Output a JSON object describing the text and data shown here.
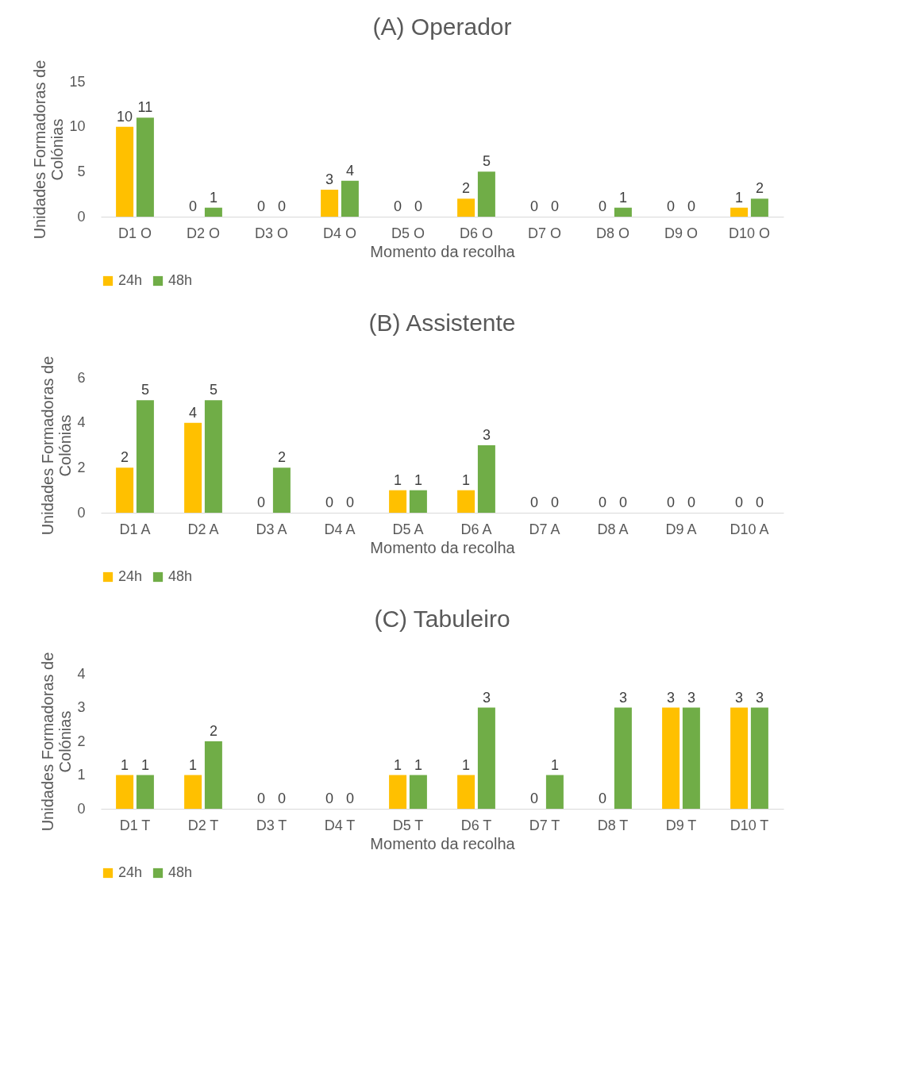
{
  "chart_data": [
    {
      "type": "bar",
      "title": "(A) Operador",
      "xlabel": "Momento da recolha",
      "ylabel": "Unidades Formadoras de Colónias",
      "categories": [
        "D1 O",
        "D2 O",
        "D3 O",
        "D4 O",
        "D5 O",
        "D6 O",
        "D7 O",
        "D8 O",
        "D9 O",
        "D10 O"
      ],
      "series": [
        {
          "name": "24h",
          "color": "#ffc000",
          "values": [
            10,
            0,
            0,
            3,
            0,
            2,
            0,
            0,
            0,
            1
          ]
        },
        {
          "name": "48h",
          "color": "#70ad47",
          "values": [
            11,
            1,
            0,
            4,
            0,
            5,
            0,
            1,
            0,
            2
          ]
        }
      ],
      "ylim": [
        0,
        15
      ],
      "yticks": [
        0,
        5,
        10,
        15
      ],
      "grid": false,
      "legend": "bottom",
      "data_labels": true
    },
    {
      "type": "bar",
      "title": "(B) Assistente",
      "xlabel": "Momento da recolha",
      "ylabel": "Unidades Formadoras de Colónias",
      "categories": [
        "D1 A",
        "D2 A",
        "D3 A",
        "D4 A",
        "D5 A",
        "D6 A",
        "D7 A",
        "D8 A",
        "D9 A",
        "D10 A"
      ],
      "series": [
        {
          "name": "24h",
          "color": "#ffc000",
          "values": [
            2,
            4,
            0,
            0,
            1,
            1,
            0,
            0,
            0,
            0
          ]
        },
        {
          "name": "48h",
          "color": "#70ad47",
          "values": [
            5,
            5,
            2,
            0,
            1,
            3,
            0,
            0,
            0,
            0
          ]
        }
      ],
      "ylim": [
        0,
        6
      ],
      "yticks": [
        0,
        2,
        4,
        6
      ],
      "grid": false,
      "legend": "bottom",
      "data_labels": true
    },
    {
      "type": "bar",
      "title": "(C) Tabuleiro",
      "xlabel": "Momento da recolha",
      "ylabel": "Unidades Formadoras de Colónias",
      "categories": [
        "D1 T",
        "D2 T",
        "D3 T",
        "D4 T",
        "D5 T",
        "D6 T",
        "D7 T",
        "D8 T",
        "D9 T",
        "D10 T"
      ],
      "series": [
        {
          "name": "24h",
          "color": "#ffc000",
          "values": [
            1,
            1,
            0,
            0,
            1,
            1,
            0,
            0,
            3,
            3
          ]
        },
        {
          "name": "48h",
          "color": "#70ad47",
          "values": [
            1,
            2,
            0,
            0,
            1,
            3,
            1,
            3,
            3,
            3
          ]
        }
      ],
      "ylim": [
        0,
        4
      ],
      "yticks": [
        0,
        1,
        2,
        3,
        4
      ],
      "grid": false,
      "legend": "bottom",
      "data_labels": true
    }
  ]
}
